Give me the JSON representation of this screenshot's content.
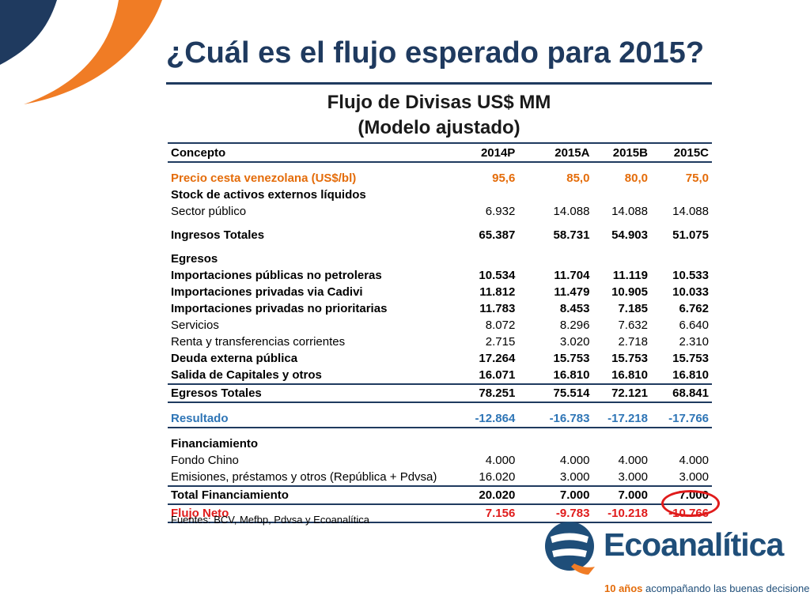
{
  "title": "¿Cuál es el flujo esperado para 2015?",
  "table": {
    "title_line1": "Flujo de Divisas US$ MM",
    "title_line2": "(Modelo ajustado)",
    "header": [
      "Concepto",
      "2014P",
      "2015A",
      "2015B",
      "2015C"
    ],
    "rows": [
      {
        "label": "Precio cesta venezolana (US$/bl)",
        "values": [
          "95,6",
          "85,0",
          "80,0",
          "75,0"
        ]
      },
      {
        "label": "Stock de activos externos líquidos",
        "values": [
          "",
          "",
          "",
          ""
        ]
      },
      {
        "label": "Sector público",
        "values": [
          "6.932",
          "14.088",
          "14.088",
          "14.088"
        ]
      },
      {
        "label": "Ingresos Totales",
        "values": [
          "65.387",
          "58.731",
          "54.903",
          "51.075"
        ]
      },
      {
        "label": "Egresos",
        "values": [
          "",
          "",
          "",
          ""
        ]
      },
      {
        "label": "Importaciones públicas no petroleras",
        "values": [
          "10.534",
          "11.704",
          "11.119",
          "10.533"
        ]
      },
      {
        "label": "Importaciones privadas via Cadivi",
        "values": [
          "11.812",
          "11.479",
          "10.905",
          "10.033"
        ]
      },
      {
        "label": "Importaciones privadas no prioritarias",
        "values": [
          "11.783",
          "8.453",
          "7.185",
          "6.762"
        ]
      },
      {
        "label": "Servicios",
        "values": [
          "8.072",
          "8.296",
          "7.632",
          "6.640"
        ]
      },
      {
        "label": "Renta y transferencias corrientes",
        "values": [
          "2.715",
          "3.020",
          "2.718",
          "2.310"
        ]
      },
      {
        "label": "Deuda externa pública",
        "values": [
          "17.264",
          "15.753",
          "15.753",
          "15.753"
        ]
      },
      {
        "label": "Salida de Capitales y otros",
        "values": [
          "16.071",
          "16.810",
          "16.810",
          "16.810"
        ]
      },
      {
        "label": "Egresos Totales",
        "values": [
          "78.251",
          "75.514",
          "72.121",
          "68.841"
        ]
      },
      {
        "label": "Resultado",
        "values": [
          "-12.864",
          "-16.783",
          "-17.218",
          "-17.766"
        ]
      },
      {
        "label": "Financiamiento",
        "values": [
          "",
          "",
          "",
          ""
        ]
      },
      {
        "label": "Fondo Chino",
        "values": [
          "4.000",
          "4.000",
          "4.000",
          "4.000"
        ]
      },
      {
        "label": "Emisiones, préstamos y otros (República + Pdvsa)",
        "values": [
          "16.020",
          "3.000",
          "3.000",
          "3.000"
        ]
      },
      {
        "label": "Total Financiamiento",
        "values": [
          "20.020",
          "7.000",
          "7.000",
          "7.000"
        ]
      },
      {
        "label": "Flujo Neto",
        "values": [
          "7.156",
          "-9.783",
          "-10.218",
          "-10.766"
        ]
      }
    ]
  },
  "source": "Fuentes: BCV, Mefbp, Pdvsa y Ecoanalítica",
  "brand": {
    "name": "Ecoanalítica",
    "tagline_bold": "10 años",
    "tagline_rest": " acompañando las buenas decisiones"
  },
  "colors": {
    "navy": "#1f3a5f",
    "orange": "#e46c0a",
    "blue": "#2e75b6",
    "red": "#e01b1b"
  }
}
